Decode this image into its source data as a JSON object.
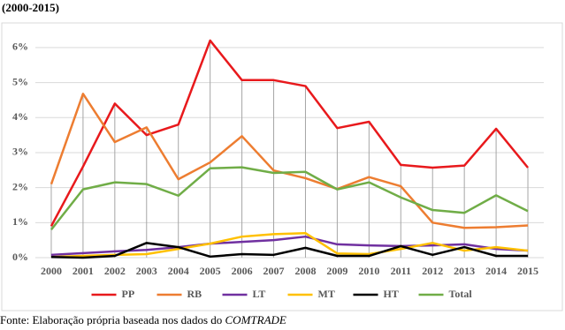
{
  "chart_data": {
    "type": "line",
    "title": "(2000-2015)",
    "source": "Fonte: Elaboração própria baseada nos dados do ",
    "source_emphasis": "COMTRADE",
    "categories": [
      "2000",
      "2001",
      "2002",
      "2003",
      "2004",
      "2005",
      "2006",
      "2007",
      "2008",
      "2009",
      "2010",
      "2011",
      "2012",
      "2013",
      "2014",
      "2015"
    ],
    "series": [
      {
        "name": "PP",
        "color": "#e8191c",
        "values": [
          0.9,
          2.6,
          4.4,
          3.5,
          3.8,
          6.2,
          5.07,
          5.07,
          4.9,
          3.7,
          3.88,
          2.65,
          2.57,
          2.63,
          3.68,
          2.57
        ]
      },
      {
        "name": "RB",
        "color": "#ed7d31",
        "values": [
          2.1,
          4.68,
          3.3,
          3.72,
          2.24,
          2.72,
          3.47,
          2.49,
          2.27,
          1.96,
          2.3,
          2.04,
          1.0,
          0.85,
          0.87,
          0.92
        ]
      },
      {
        "name": "LT",
        "color": "#7030a0",
        "values": [
          0.08,
          0.13,
          0.18,
          0.22,
          0.3,
          0.4,
          0.45,
          0.5,
          0.6,
          0.38,
          0.35,
          0.33,
          0.35,
          0.38,
          0.25,
          0.2
        ]
      },
      {
        "name": "MT",
        "color": "#ffc000",
        "values": [
          0.02,
          0.05,
          0.08,
          0.1,
          0.25,
          0.4,
          0.6,
          0.67,
          0.7,
          0.12,
          0.1,
          0.25,
          0.42,
          0.2,
          0.3,
          0.2
        ]
      },
      {
        "name": "HT",
        "color": "#000000",
        "values": [
          0.02,
          0.0,
          0.05,
          0.42,
          0.3,
          0.03,
          0.1,
          0.08,
          0.28,
          0.05,
          0.05,
          0.33,
          0.08,
          0.3,
          0.05,
          0.05
        ]
      },
      {
        "name": "Total",
        "color": "#70ad47",
        "values": [
          0.8,
          1.95,
          2.15,
          2.1,
          1.77,
          2.55,
          2.58,
          2.42,
          2.45,
          1.95,
          2.15,
          1.72,
          1.36,
          1.28,
          1.78,
          1.33
        ]
      }
    ],
    "ylim": [
      0,
      6.3
    ],
    "yticks": [
      {
        "value": 0,
        "label": "0%"
      },
      {
        "value": 1,
        "label": "1%"
      },
      {
        "value": 2,
        "label": "2%"
      },
      {
        "value": 3,
        "label": "3%"
      },
      {
        "value": 4,
        "label": "4%"
      },
      {
        "value": 5,
        "label": "5%"
      },
      {
        "value": 6,
        "label": "6%"
      }
    ],
    "grid": true,
    "drop_lines": true,
    "legend": "bottom"
  }
}
